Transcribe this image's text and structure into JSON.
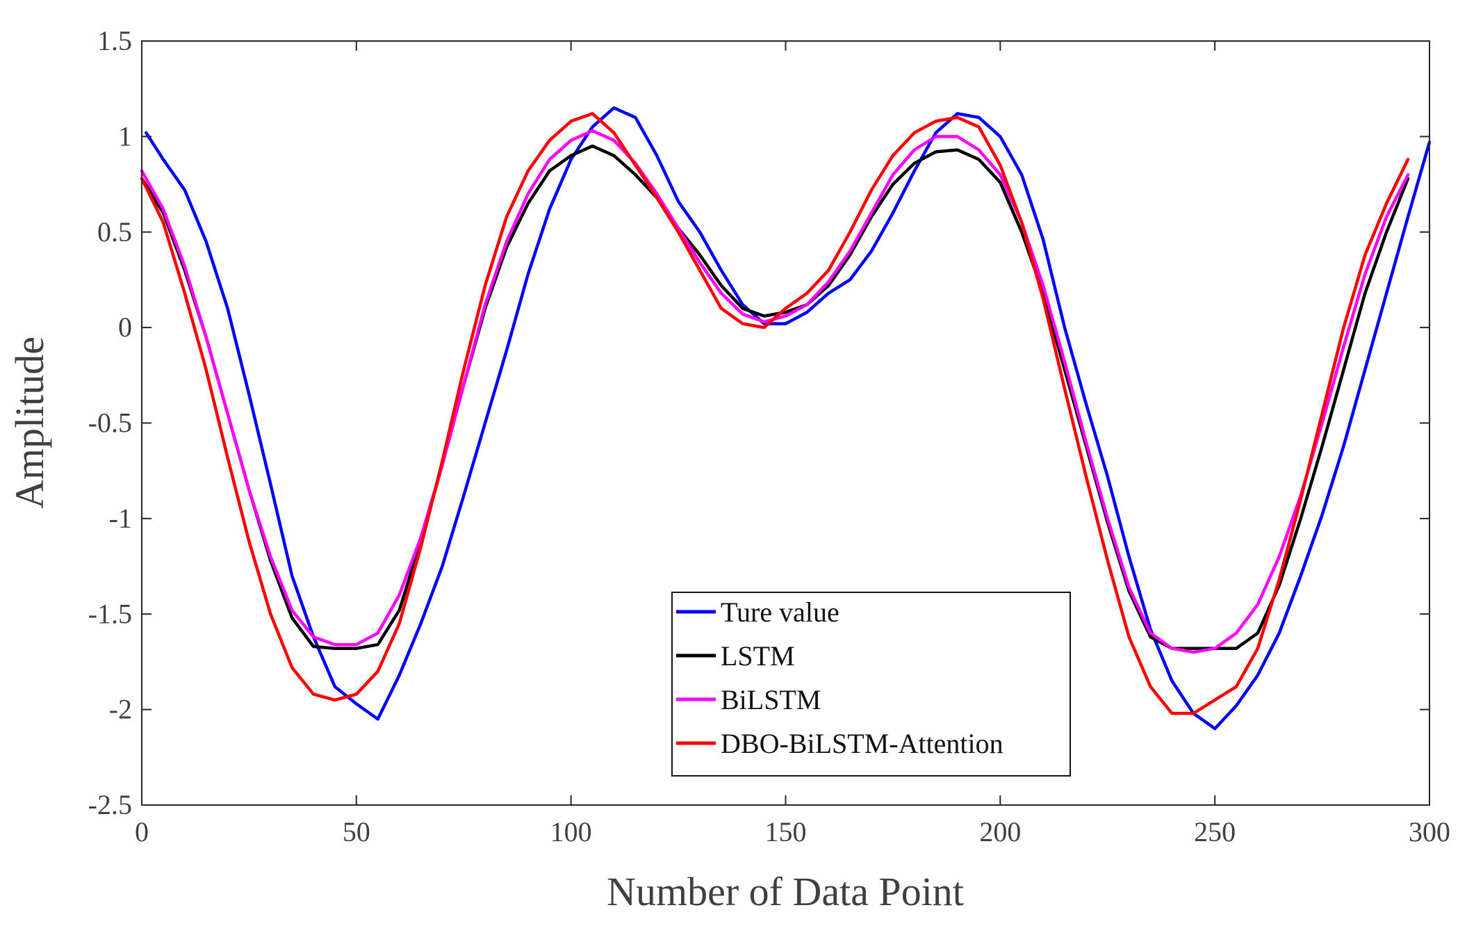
{
  "chart_data": {
    "type": "line",
    "title": "",
    "xlabel": "Number of Data Point",
    "ylabel": "Amplitude",
    "xlim": [
      0,
      300
    ],
    "ylim": [
      -2.5,
      1.5
    ],
    "xticks": [
      0,
      50,
      100,
      150,
      200,
      250,
      300
    ],
    "xtick_labels": [
      "0",
      "50",
      "100",
      "150",
      "200",
      "250",
      "300"
    ],
    "yticks": [
      1.5,
      1,
      0.5,
      0,
      -0.5,
      -1,
      -1.5,
      -2,
      -2.5
    ],
    "ytick_labels": [
      "1.5",
      "1",
      "0.5",
      "0",
      "-0.5",
      "-1",
      "-1.5",
      "-2",
      "-2.5"
    ],
    "grid": false,
    "legend_position": "bottom-center",
    "series": [
      {
        "name": "Ture value",
        "color": "#0000ff",
        "x": [
          1,
          5,
          10,
          15,
          20,
          25,
          30,
          35,
          40,
          45,
          50,
          55,
          60,
          65,
          70,
          75,
          80,
          85,
          90,
          95,
          100,
          105,
          110,
          115,
          120,
          125,
          130,
          135,
          140,
          145,
          150,
          155,
          160,
          165,
          170,
          175,
          180,
          185,
          190,
          195,
          200,
          205,
          210,
          215,
          220,
          225,
          230,
          235,
          240,
          245,
          250,
          255,
          260,
          265,
          270,
          275,
          280,
          285,
          290,
          295,
          300
        ],
        "y": [
          1.02,
          0.88,
          0.72,
          0.45,
          0.1,
          -0.35,
          -0.82,
          -1.3,
          -1.62,
          -1.88,
          -1.97,
          -2.05,
          -1.82,
          -1.55,
          -1.25,
          -0.88,
          -0.5,
          -0.12,
          0.28,
          0.62,
          0.88,
          1.05,
          1.15,
          1.1,
          0.9,
          0.66,
          0.5,
          0.3,
          0.12,
          0.02,
          0.02,
          0.08,
          0.18,
          0.25,
          0.4,
          0.6,
          0.82,
          1.02,
          1.12,
          1.1,
          1.0,
          0.8,
          0.46,
          0.0,
          -0.4,
          -0.78,
          -1.2,
          -1.58,
          -1.85,
          -2.02,
          -2.1,
          -1.98,
          -1.82,
          -1.6,
          -1.3,
          -0.98,
          -0.62,
          -0.22,
          0.18,
          0.58,
          0.97
        ]
      },
      {
        "name": "LSTM",
        "color": "#000000",
        "x": [
          0,
          5,
          10,
          15,
          20,
          25,
          30,
          35,
          40,
          45,
          50,
          55,
          60,
          65,
          70,
          75,
          80,
          85,
          90,
          95,
          100,
          105,
          110,
          115,
          120,
          125,
          130,
          135,
          140,
          145,
          150,
          155,
          160,
          165,
          170,
          175,
          180,
          185,
          190,
          195,
          200,
          205,
          210,
          215,
          220,
          225,
          230,
          235,
          240,
          245,
          250,
          255,
          260,
          265,
          270,
          275,
          280,
          285,
          290,
          295
        ],
        "y": [
          0.78,
          0.6,
          0.3,
          -0.05,
          -0.45,
          -0.85,
          -1.22,
          -1.52,
          -1.67,
          -1.68,
          -1.68,
          -1.66,
          -1.48,
          -1.12,
          -0.72,
          -0.3,
          0.1,
          0.42,
          0.65,
          0.82,
          0.9,
          0.95,
          0.9,
          0.8,
          0.68,
          0.52,
          0.38,
          0.22,
          0.1,
          0.06,
          0.08,
          0.12,
          0.22,
          0.38,
          0.58,
          0.75,
          0.86,
          0.92,
          0.93,
          0.88,
          0.76,
          0.5,
          0.18,
          -0.22,
          -0.62,
          -1.02,
          -1.38,
          -1.62,
          -1.68,
          -1.68,
          -1.68,
          -1.68,
          -1.6,
          -1.35,
          -1.0,
          -0.62,
          -0.22,
          0.18,
          0.5,
          0.78
        ]
      },
      {
        "name": "BiLSTM",
        "color": "#ff00ff",
        "x": [
          0,
          5,
          10,
          15,
          20,
          25,
          30,
          35,
          40,
          45,
          50,
          55,
          60,
          65,
          70,
          75,
          80,
          85,
          90,
          95,
          100,
          105,
          110,
          115,
          120,
          125,
          130,
          135,
          140,
          145,
          150,
          155,
          160,
          165,
          170,
          175,
          180,
          185,
          190,
          195,
          200,
          205,
          210,
          215,
          220,
          225,
          230,
          235,
          240,
          245,
          250,
          255,
          260,
          265,
          270,
          275,
          280,
          285,
          290,
          295
        ],
        "y": [
          0.82,
          0.62,
          0.32,
          -0.05,
          -0.45,
          -0.85,
          -1.2,
          -1.48,
          -1.62,
          -1.66,
          -1.66,
          -1.6,
          -1.4,
          -1.1,
          -0.72,
          -0.3,
          0.12,
          0.45,
          0.7,
          0.88,
          0.98,
          1.03,
          0.98,
          0.86,
          0.7,
          0.52,
          0.34,
          0.18,
          0.07,
          0.03,
          0.06,
          0.12,
          0.24,
          0.4,
          0.6,
          0.8,
          0.93,
          1.0,
          1.0,
          0.93,
          0.8,
          0.55,
          0.22,
          -0.18,
          -0.6,
          -1.0,
          -1.36,
          -1.6,
          -1.68,
          -1.7,
          -1.68,
          -1.6,
          -1.45,
          -1.2,
          -0.88,
          -0.5,
          -0.1,
          0.28,
          0.58,
          0.8
        ]
      },
      {
        "name": "DBO-BiLSTM-Attention",
        "color": "#ff0000",
        "x": [
          0,
          5,
          10,
          15,
          20,
          25,
          30,
          35,
          40,
          45,
          50,
          55,
          60,
          65,
          70,
          75,
          80,
          85,
          90,
          95,
          100,
          105,
          110,
          115,
          120,
          125,
          130,
          135,
          140,
          145,
          150,
          155,
          160,
          165,
          170,
          175,
          180,
          185,
          190,
          195,
          200,
          205,
          210,
          215,
          220,
          225,
          230,
          235,
          240,
          245,
          250,
          255,
          260,
          265,
          270,
          275,
          280,
          285,
          290,
          295
        ],
        "y": [
          0.78,
          0.55,
          0.18,
          -0.22,
          -0.68,
          -1.12,
          -1.5,
          -1.78,
          -1.92,
          -1.95,
          -1.92,
          -1.8,
          -1.55,
          -1.15,
          -0.7,
          -0.22,
          0.22,
          0.58,
          0.82,
          0.98,
          1.08,
          1.12,
          1.02,
          0.85,
          0.68,
          0.5,
          0.3,
          0.1,
          0.02,
          0.0,
          0.1,
          0.18,
          0.3,
          0.5,
          0.72,
          0.9,
          1.02,
          1.08,
          1.1,
          1.05,
          0.85,
          0.55,
          0.15,
          -0.32,
          -0.78,
          -1.22,
          -1.62,
          -1.88,
          -2.02,
          -2.02,
          -1.95,
          -1.88,
          -1.68,
          -1.32,
          -0.9,
          -0.45,
          0.0,
          0.38,
          0.65,
          0.88
        ]
      }
    ]
  }
}
